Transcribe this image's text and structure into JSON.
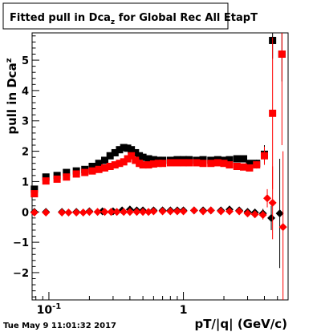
{
  "title_box": {
    "text_before_sub": "Fitted pull in Dca",
    "subscript": "z",
    "text_after_sub": " for Global Rec All EtapT"
  },
  "timestamp": "Tue May  9 11:01:32 2017",
  "chart_data": {
    "type": "scatter",
    "title": "Fitted pull in Dca_z for Global Rec All EtapT",
    "ylabel": "pull in Dca",
    "ylabel_subscript": "z",
    "xlabel": "pT/|q| (GeV/c)",
    "x_scale": "log",
    "xlim": [
      0.075,
      6.0
    ],
    "ylim": [
      -2.9,
      5.9
    ],
    "grid": false,
    "x_major_ticks": [
      0.1,
      1
    ],
    "x_major_tick_labels": [
      "10",
      "1"
    ],
    "x_major_tick_label_exponents": [
      "-1",
      ""
    ],
    "y_ticks": [
      -2,
      -1,
      0,
      1,
      2,
      3,
      4,
      5
    ],
    "y_tick_labels": [
      "−2",
      "−1",
      "0",
      "1",
      "2",
      "3",
      "4",
      "5"
    ],
    "colors": {
      "series_black": "#000000",
      "series_red": "#ff0000"
    },
    "series": [
      {
        "marker": "square",
        "color": "#000000",
        "x": [
          0.078,
          0.095,
          0.115,
          0.135,
          0.16,
          0.185,
          0.21,
          0.235,
          0.26,
          0.285,
          0.31,
          0.335,
          0.36,
          0.385,
          0.41,
          0.44,
          0.47,
          0.5,
          0.55,
          0.6,
          0.65,
          0.7,
          0.8,
          0.9,
          1.0,
          1.1,
          1.25,
          1.4,
          1.6,
          1.8,
          2.0,
          2.2,
          2.5,
          2.8,
          3.1,
          3.5,
          4.0,
          4.6,
          5.4
        ],
        "y": [
          0.75,
          1.15,
          1.2,
          1.3,
          1.35,
          1.4,
          1.5,
          1.6,
          1.7,
          1.85,
          1.95,
          2.05,
          2.12,
          2.1,
          2.05,
          1.95,
          1.85,
          1.8,
          1.75,
          1.72,
          1.7,
          1.7,
          1.7,
          1.72,
          1.72,
          1.72,
          1.7,
          1.72,
          1.7,
          1.72,
          1.7,
          1.72,
          1.75,
          1.75,
          1.6,
          1.6,
          1.9,
          5.65,
          5.2
        ],
        "y_err": [
          0.05,
          0.03,
          0.03,
          0.03,
          0.03,
          0.03,
          0.03,
          0.03,
          0.03,
          0.03,
          0.03,
          0.03,
          0.03,
          0.03,
          0.03,
          0.03,
          0.03,
          0.03,
          0.03,
          0.03,
          0.03,
          0.03,
          0.03,
          0.03,
          0.03,
          0.03,
          0.03,
          0.03,
          0.03,
          0.03,
          0.03,
          0.04,
          0.05,
          0.07,
          0.09,
          0.12,
          0.3,
          0.6,
          0.9
        ]
      },
      {
        "marker": "square",
        "color": "#ff0000",
        "x": [
          0.078,
          0.095,
          0.115,
          0.135,
          0.16,
          0.185,
          0.21,
          0.235,
          0.26,
          0.285,
          0.31,
          0.335,
          0.36,
          0.385,
          0.41,
          0.44,
          0.47,
          0.5,
          0.55,
          0.6,
          0.65,
          0.7,
          0.8,
          0.9,
          1.0,
          1.1,
          1.25,
          1.4,
          1.6,
          1.8,
          2.0,
          2.2,
          2.5,
          2.8,
          3.1,
          3.5,
          4.0,
          4.6,
          5.4
        ],
        "y": [
          0.6,
          1.02,
          1.08,
          1.15,
          1.25,
          1.3,
          1.35,
          1.4,
          1.45,
          1.5,
          1.55,
          1.6,
          1.65,
          1.75,
          1.85,
          1.7,
          1.6,
          1.55,
          1.55,
          1.58,
          1.6,
          1.6,
          1.62,
          1.62,
          1.62,
          1.62,
          1.62,
          1.6,
          1.6,
          1.62,
          1.6,
          1.55,
          1.5,
          1.48,
          1.45,
          1.55,
          1.85,
          3.25,
          5.2
        ],
        "y_err": [
          0.05,
          0.03,
          0.03,
          0.03,
          0.03,
          0.03,
          0.03,
          0.03,
          0.03,
          0.03,
          0.03,
          0.03,
          0.03,
          0.03,
          0.03,
          0.03,
          0.03,
          0.03,
          0.03,
          0.03,
          0.03,
          0.03,
          0.03,
          0.03,
          0.03,
          0.03,
          0.03,
          0.03,
          0.03,
          0.03,
          0.03,
          0.04,
          0.05,
          0.07,
          0.09,
          0.12,
          0.3,
          2.5,
          3.0
        ]
      },
      {
        "marker": "diamond",
        "color": "#000000",
        "x": [
          0.078,
          0.095,
          0.125,
          0.16,
          0.2,
          0.25,
          0.3,
          0.35,
          0.4,
          0.45,
          0.5,
          0.6,
          0.7,
          0.8,
          0.9,
          1.0,
          1.2,
          1.4,
          1.6,
          1.9,
          2.2,
          2.6,
          3.0,
          3.4,
          3.9,
          4.5,
          5.2
        ],
        "y": [
          0.0,
          0.0,
          0.0,
          0.0,
          0.02,
          0.02,
          0.02,
          0.05,
          0.08,
          0.05,
          0.05,
          0.05,
          0.05,
          0.05,
          0.05,
          0.05,
          0.05,
          0.05,
          0.05,
          0.05,
          0.08,
          0.05,
          0.0,
          -0.02,
          -0.05,
          -0.2,
          -0.05
        ],
        "y_err": [
          0.03,
          0.02,
          0.02,
          0.02,
          0.02,
          0.02,
          0.02,
          0.02,
          0.02,
          0.02,
          0.02,
          0.02,
          0.02,
          0.02,
          0.02,
          0.02,
          0.02,
          0.02,
          0.03,
          0.03,
          0.04,
          0.05,
          0.06,
          0.08,
          0.15,
          0.4,
          1.8
        ]
      },
      {
        "marker": "diamond",
        "color": "#ff0000",
        "x": [
          0.078,
          0.095,
          0.125,
          0.14,
          0.16,
          0.18,
          0.2,
          0.23,
          0.26,
          0.29,
          0.32,
          0.36,
          0.4,
          0.45,
          0.5,
          0.55,
          0.6,
          0.7,
          0.8,
          0.9,
          1.0,
          1.2,
          1.4,
          1.6,
          1.9,
          2.2,
          2.6,
          3.0,
          3.4,
          3.9,
          4.2,
          4.6,
          5.5
        ],
        "y": [
          -0.02,
          -0.02,
          -0.02,
          -0.02,
          -0.02,
          -0.02,
          0.0,
          0.0,
          0.0,
          0.0,
          0.0,
          0.0,
          0.0,
          0.0,
          0.0,
          0.0,
          0.02,
          0.02,
          0.02,
          0.02,
          0.02,
          0.05,
          0.02,
          0.05,
          0.02,
          0.02,
          0.02,
          -0.05,
          -0.08,
          -0.1,
          0.45,
          0.3,
          -0.5
        ],
        "y_err": [
          0.03,
          0.02,
          0.02,
          0.02,
          0.02,
          0.02,
          0.02,
          0.02,
          0.02,
          0.02,
          0.02,
          0.02,
          0.02,
          0.02,
          0.02,
          0.02,
          0.02,
          0.02,
          0.02,
          0.02,
          0.02,
          0.02,
          0.02,
          0.03,
          0.03,
          0.04,
          0.05,
          0.06,
          0.08,
          0.15,
          0.3,
          1.2,
          2.5
        ]
      }
    ]
  }
}
